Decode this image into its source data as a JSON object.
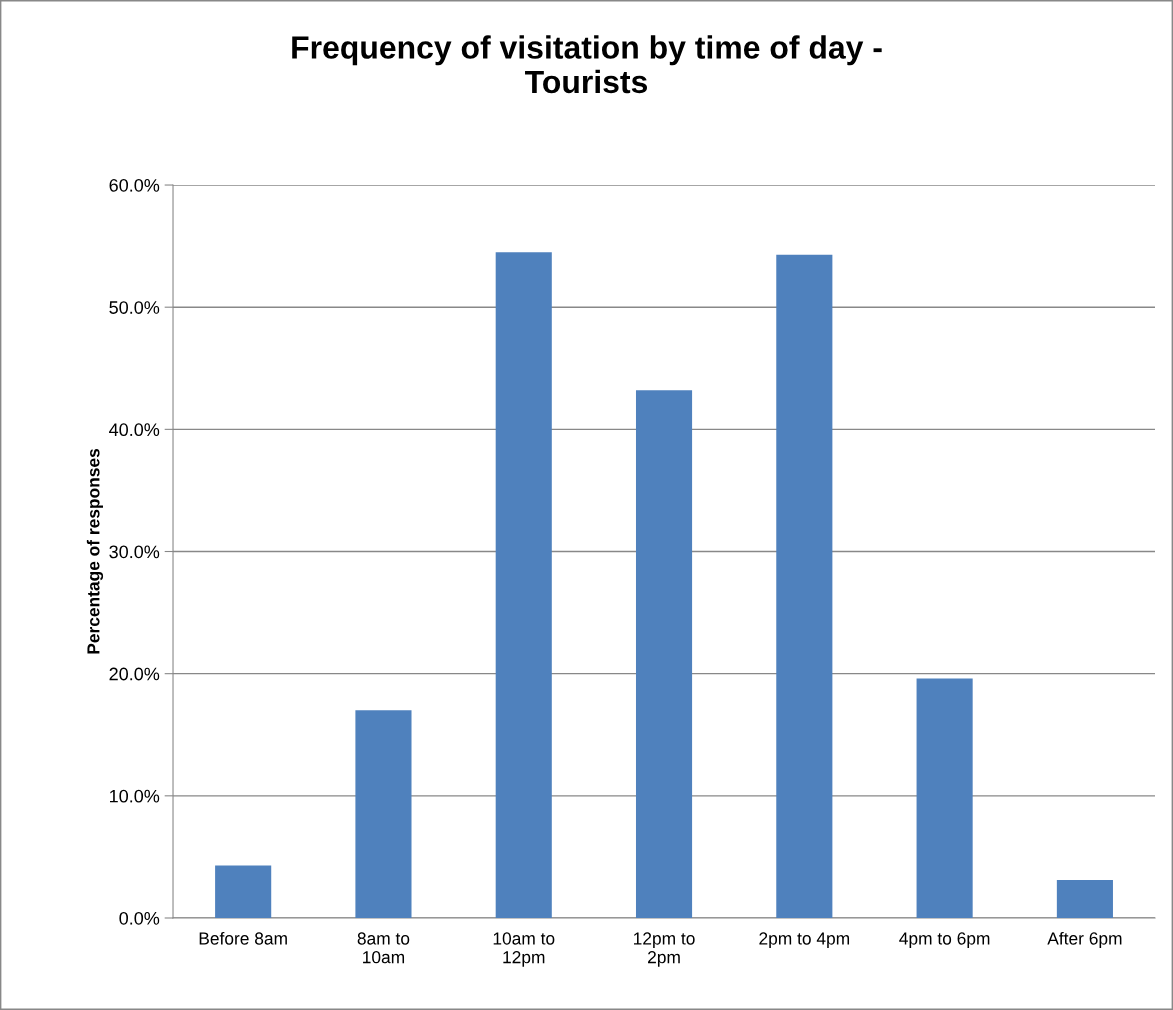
{
  "chart_data": {
    "type": "bar",
    "title": "Frequency of visitation by time of day -\nTourists",
    "ylabel": "Percentage of responses",
    "categories": [
      "Before 8am",
      "8am to\n10am",
      "10am to\n12pm",
      "12pm to\n2pm",
      "2pm to 4pm",
      "4pm to 6pm",
      "After 6pm"
    ],
    "values": [
      4.3,
      17.0,
      54.5,
      43.2,
      54.3,
      19.6,
      3.1
    ],
    "color": "#4f81bd",
    "ylim": [
      0,
      60
    ],
    "yticks": [
      {
        "value": 0,
        "label": "0.0%"
      },
      {
        "value": 10,
        "label": "10.0%"
      },
      {
        "value": 20,
        "label": "20.0%"
      },
      {
        "value": 30,
        "label": "30.0%"
      },
      {
        "value": 40,
        "label": "40.0%"
      },
      {
        "value": 50,
        "label": "50.0%"
      },
      {
        "value": 60,
        "label": "60.0%"
      }
    ],
    "grid": "y"
  }
}
